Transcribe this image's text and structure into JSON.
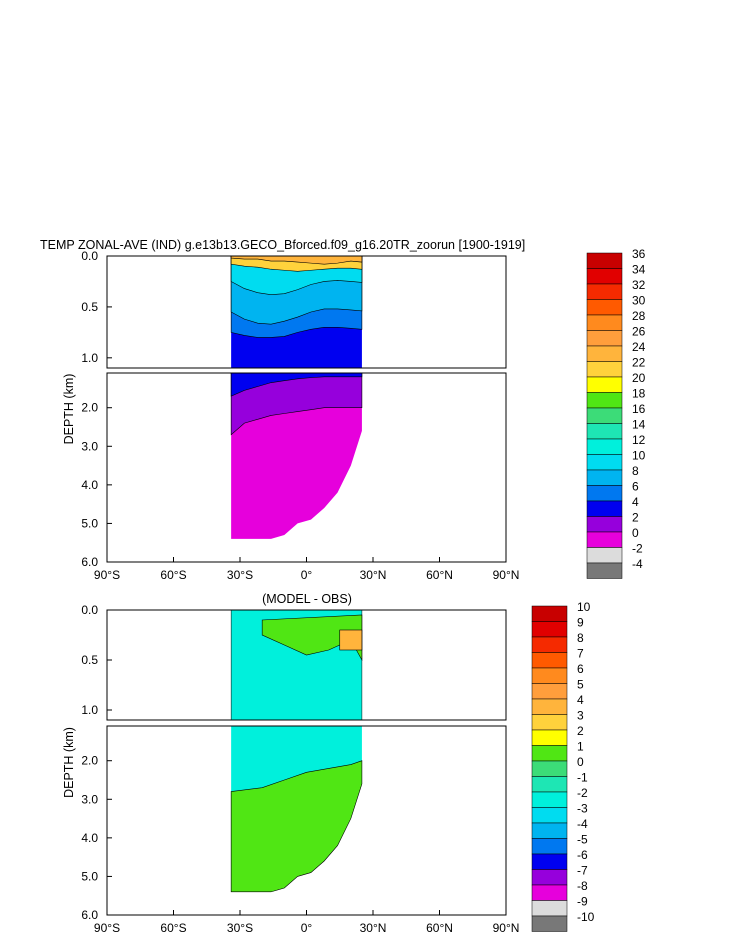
{
  "chart_data": [
    {
      "type": "heatmap",
      "title": "TEMP ZONAL-AVE (IND) g.e13b13.GECO_Bforced.f09_g16.20TR_zoorun [1900-1919]",
      "ylabel": "DEPTH (km)",
      "xlabel": "",
      "x_ticks": [
        "90°S",
        "60°S",
        "30°S",
        "0°",
        "30°N",
        "60°N",
        "90°N"
      ],
      "x_range": [
        -90,
        90
      ],
      "y_ticks_upper": [
        "0.0",
        "0.5",
        "1.0"
      ],
      "y_ticks_lower": [
        "2.0",
        "3.0",
        "4.0",
        "5.0",
        "6.0"
      ],
      "y_range_upper_km": [
        0,
        1.1
      ],
      "y_range_lower_km": [
        1.1,
        6
      ],
      "data_lat_range": [
        -34,
        25
      ],
      "colorbar": {
        "labels": [
          "36",
          "34",
          "32",
          "30",
          "28",
          "26",
          "24",
          "22",
          "20",
          "18",
          "16",
          "14",
          "12",
          "10",
          "8",
          "6",
          "4",
          "2",
          "0",
          "-2",
          "-4"
        ],
        "colors": [
          "#c80000",
          "#e10000",
          "#f52a00",
          "#ff5a00",
          "#ff8a1e",
          "#ff9e3c",
          "#ffb43c",
          "#ffd23c",
          "#ffff00",
          "#50e614",
          "#3cdc78",
          "#1ee6b4",
          "#00f0dc",
          "#00dcf0",
          "#00b4f0",
          "#0078f0",
          "#0000f0",
          "#9600dc",
          "#e600dc",
          "#dcdcdc",
          "#787878"
        ]
      },
      "levels": [
        {
          "lat": [
            -34,
            -28,
            -22,
            -16,
            -10,
            -4,
            2,
            8,
            14,
            20,
            25
          ],
          "depth": [
            0.02,
            0.03,
            0.03,
            0.05,
            0.05,
            0.06,
            0.07,
            0.08,
            0.07,
            0.05,
            0.06
          ]
        },
        {
          "lat": [
            -34,
            -28,
            -22,
            -16,
            -10,
            -4,
            2,
            8,
            14,
            20,
            25
          ],
          "depth": [
            0.08,
            0.1,
            0.11,
            0.13,
            0.14,
            0.15,
            0.14,
            0.13,
            0.12,
            0.12,
            0.13
          ]
        },
        {
          "lat": [
            -34,
            -28,
            -22,
            -16,
            -10,
            -4,
            2,
            8,
            14,
            20,
            25
          ],
          "depth": [
            0.25,
            0.32,
            0.36,
            0.38,
            0.37,
            0.33,
            0.28,
            0.25,
            0.24,
            0.25,
            0.26
          ]
        },
        {
          "lat": [
            -34,
            -28,
            -22,
            -16,
            -10,
            -4,
            2,
            8,
            14,
            20,
            25
          ],
          "depth": [
            0.55,
            0.62,
            0.66,
            0.67,
            0.64,
            0.6,
            0.55,
            0.52,
            0.52,
            0.53,
            0.54
          ]
        },
        {
          "lat": [
            -34,
            -28,
            -22,
            -16,
            -10,
            -4,
            2,
            8,
            14,
            20,
            25
          ],
          "depth": [
            0.75,
            0.78,
            0.8,
            0.8,
            0.79,
            0.75,
            0.72,
            0.7,
            0.7,
            0.71,
            0.72
          ]
        },
        {
          "lat": [
            -34,
            -28,
            -22,
            -16,
            -10,
            -4,
            2,
            8,
            14,
            20,
            25
          ],
          "depth": [
            1.7,
            1.55,
            1.45,
            1.35,
            1.3,
            1.25,
            1.22,
            1.2,
            1.2,
            1.2,
            1.2
          ]
        },
        {
          "lat": [
            -34,
            -28,
            -22,
            -16,
            -10,
            -4,
            2,
            8,
            14,
            20,
            25
          ],
          "depth": [
            2.7,
            2.4,
            2.3,
            2.2,
            2.15,
            2.1,
            2.05,
            2.0,
            2.0,
            2.0,
            2.0
          ]
        }
      ],
      "bottom_profile": {
        "lat": [
          -34,
          -28,
          -22,
          -16,
          -10,
          -4,
          2,
          8,
          14,
          20,
          25
        ],
        "depth": [
          5.4,
          5.4,
          5.4,
          5.4,
          5.3,
          5.0,
          4.9,
          4.6,
          4.2,
          3.5,
          2.6
        ]
      }
    },
    {
      "type": "heatmap",
      "title": "(MODEL - OBS)",
      "ylabel": "DEPTH (km)",
      "xlabel": "",
      "x_ticks": [
        "90°S",
        "60°S",
        "30°S",
        "0°",
        "30°N",
        "60°N",
        "90°N"
      ],
      "x_range": [
        -90,
        90
      ],
      "y_ticks_upper": [
        "0.0",
        "0.5",
        "1.0"
      ],
      "y_ticks_lower": [
        "2.0",
        "3.0",
        "4.0",
        "5.0",
        "6.0"
      ],
      "y_range_upper_km": [
        0,
        1.1
      ],
      "y_range_lower_km": [
        1.1,
        6
      ],
      "data_lat_range": [
        -34,
        25
      ],
      "colorbar": {
        "labels": [
          "10",
          "9",
          "8",
          "7",
          "6",
          "5",
          "4",
          "3",
          "2",
          "1",
          "0",
          "-1",
          "-2",
          "-3",
          "-4",
          "-5",
          "-6",
          "-7",
          "-8",
          "-9",
          "-10"
        ],
        "colors": [
          "#c80000",
          "#e10000",
          "#f52a00",
          "#ff5a00",
          "#ff8a1e",
          "#ff9e3c",
          "#ffb43c",
          "#ffd23c",
          "#ffff00",
          "#50e614",
          "#3cdc78",
          "#1ee6b4",
          "#00f0dc",
          "#00dcf0",
          "#00b4f0",
          "#0078f0",
          "#0000f0",
          "#9600dc",
          "#e600dc",
          "#dcdcdc",
          "#787878"
        ]
      },
      "anomaly_regions": [
        {
          "value": 1,
          "lat": [
            -20,
            -10,
            0,
            10,
            20,
            25
          ],
          "depth": [
            0.25,
            0.35,
            0.45,
            0.4,
            0.3,
            0.5
          ]
        },
        {
          "value": 1,
          "lat": [
            -34,
            -20,
            -10,
            0,
            10,
            20,
            25
          ],
          "depth_top": [
            2.8,
            2.7,
            2.5,
            2.3,
            2.2,
            2.1,
            2.0
          ]
        },
        {
          "value": 3,
          "lat": [
            15,
            25
          ],
          "depth": [
            0.2,
            0.4
          ]
        }
      ],
      "bottom_profile": {
        "lat": [
          -34,
          -28,
          -22,
          -16,
          -10,
          -4,
          2,
          8,
          14,
          20,
          25
        ],
        "depth": [
          5.4,
          5.4,
          5.4,
          5.4,
          5.3,
          5.0,
          4.9,
          4.6,
          4.2,
          3.5,
          2.6
        ]
      }
    }
  ]
}
